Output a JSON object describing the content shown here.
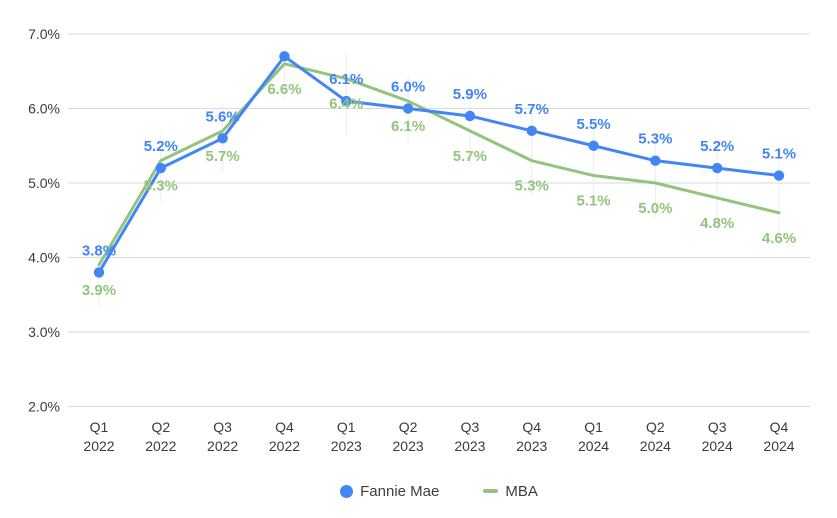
{
  "chart_data": {
    "type": "line",
    "categories": [
      [
        "Q1",
        "2022"
      ],
      [
        "Q2",
        "2022"
      ],
      [
        "Q3",
        "2022"
      ],
      [
        "Q4",
        "2022"
      ],
      [
        "Q1",
        "2023"
      ],
      [
        "Q2",
        "2023"
      ],
      [
        "Q3",
        "2023"
      ],
      [
        "Q4",
        "2023"
      ],
      [
        "Q1",
        "2024"
      ],
      [
        "Q2",
        "2024"
      ],
      [
        "Q3",
        "2024"
      ],
      [
        "Q4",
        "2024"
      ]
    ],
    "y_axis": {
      "ylim": [
        2,
        7
      ],
      "ticks": [
        {
          "value": 7,
          "label": "7.0%"
        },
        {
          "value": 6,
          "label": "6.0%"
        },
        {
          "value": 5,
          "label": "5.0%"
        },
        {
          "value": 4,
          "label": "4.0%"
        },
        {
          "value": 3,
          "label": "3.0%"
        },
        {
          "value": 2,
          "label": "2.0%"
        }
      ]
    },
    "series": [
      {
        "name": "Fannie Mae",
        "color": "#4285f4",
        "marker": "circle",
        "label_position": "above",
        "values": [
          3.8,
          5.2,
          5.6,
          6.7,
          6.1,
          6.0,
          5.9,
          5.7,
          5.5,
          5.3,
          5.2,
          5.1
        ],
        "point_labels": [
          "3.8%",
          "5.2%",
          "5.6%",
          null,
          "6.1%",
          "6.0%",
          "5.9%",
          "5.7%",
          "5.5%",
          "5.3%",
          "5.2%",
          "5.1%"
        ]
      },
      {
        "name": "MBA",
        "color": "#93c47d",
        "marker": "dash",
        "label_position": "below",
        "values": [
          3.9,
          5.3,
          5.7,
          6.6,
          6.4,
          6.1,
          5.7,
          5.3,
          5.1,
          5.0,
          4.8,
          4.6
        ],
        "point_labels": [
          "3.9%",
          "5.3%",
          "5.7%",
          "6.6%",
          "6.4%",
          "6.1%",
          "5.7%",
          "5.3%",
          "5.1%",
          "5.0%",
          "4.8%",
          "4.6%"
        ]
      }
    ],
    "legend": {
      "position": "bottom"
    },
    "grid": true,
    "gridline_color": "#dadada",
    "leader_line_color": "#ececec"
  }
}
